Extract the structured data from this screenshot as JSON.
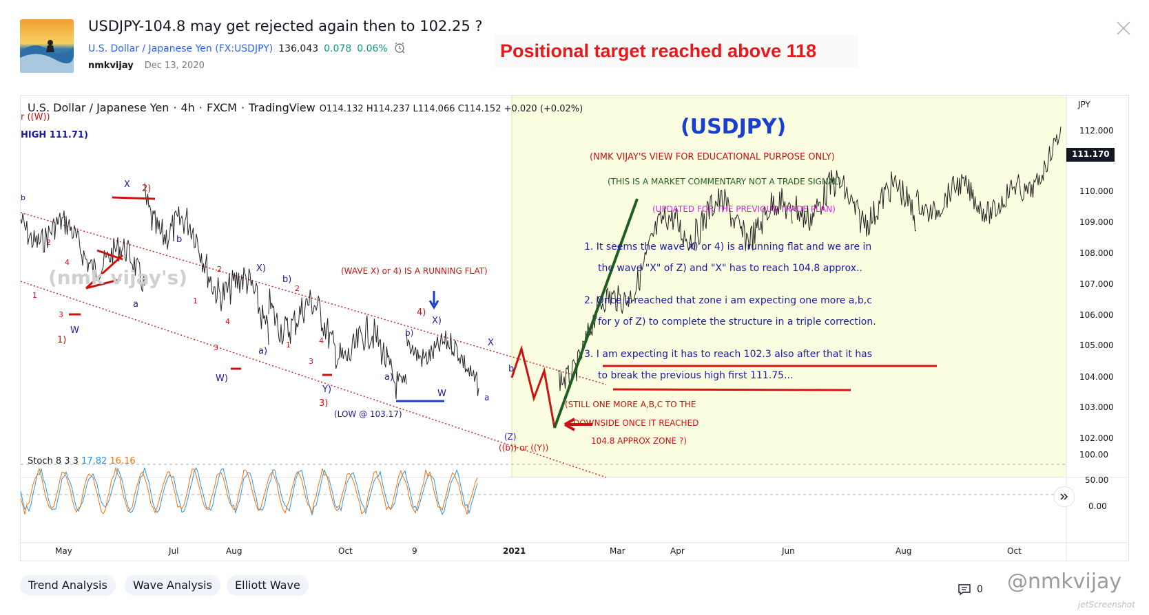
{
  "header": {
    "title": "USDJPY-104.8 may get rejected again then to 102.25 ?",
    "symbol_name": "U.S. Dollar / Japanese Yen",
    "symbol_open": "(",
    "symbol_code": "FX:USDJPY",
    "symbol_close": ")",
    "price": "136.043",
    "change": "0.078",
    "change_pct": "0.06%",
    "author": "nmkvijay",
    "date": "Dec 13, 2020",
    "update_note": "Positional target reached above 118"
  },
  "legend": {
    "symbol": "U.S. Dollar / Japanese Yen",
    "interval": "4h",
    "source": "FXCM",
    "platform": "TradingView",
    "ohlc": "O114.132  H114.237  L114.066  C114.152  +0.020 (+0.02%)"
  },
  "price_axis": {
    "currency": "JPY",
    "current_price": "111.170",
    "ticks": [
      "112.000",
      "110.000",
      "109.000",
      "108.000",
      "107.000",
      "106.000",
      "105.000",
      "104.000",
      "103.000",
      "102.000"
    ]
  },
  "stoch": {
    "label": "Stoch 8 3 3",
    "k": "17.82",
    "d": "16.16",
    "ticks": [
      "100.00",
      "50.00",
      "0.00"
    ]
  },
  "time_axis": {
    "labels": [
      "May",
      "Jul",
      "Aug",
      "Oct",
      "9",
      "2021",
      "Mar",
      "Apr",
      "Jun",
      "Aug",
      "Oct"
    ]
  },
  "annotations": {
    "left_top_1": "r ((W))",
    "left_top_2": "HIGH 111.71)",
    "watermark_chart": "(nmk vijay's)",
    "wave_x_note": "(WAVE X) or 4) IS A RUNNING FLAT)",
    "low_note": "(LOW @ 103.17)",
    "usdjpy_title": "(USDJPY)",
    "view_note": "(NMK VIJAY'S VIEW FOR EDUCATIONAL PURPOSE ONLY)",
    "commentary_note": "(THIS IS A MARKET COMMENTARY NOT A TRADE SIGNAL)",
    "updated_note": "(UPDATED FOR THE PREVIOUS TRADE PLAN)",
    "point1_a": "1. It seems the wave X) or 4) is a running flat and we are in",
    "point1_b": "the wave \"X\" of Z) and \"X\" has to reach 104.8 approx..",
    "point2_a": "2. Once it reached that zone i am expecting one more a,b,c",
    "point2_b": "for y of Z) to complete the structure in a triple correction.",
    "point3_a": "3. I am expecting it has to reach 102.3 also after that it has",
    "point3_b": "to break the previous high first 111.75...",
    "still_1": "(STILL ONE MORE A,B,C TO THE",
    "still_2": "DOWNSIDE ONCE IT REACHED",
    "still_3": "104.8 APPROX ZONE ?)",
    "z_label": "(Z)",
    "b_or_y": "((b)) or ((Y))",
    "wave_labels": {
      "x_top": "X",
      "two_top": "2)",
      "b1": "b",
      "a1": "a",
      "two_a": "2",
      "four_a": "4",
      "one_a": "1",
      "three_a": "3",
      "w_a": "W",
      "one_p": "1)",
      "x2": "X)",
      "b2": "b)",
      "two_b": "2",
      "two_c": "2",
      "one_b": "1",
      "four_b": "4",
      "three_b": "3",
      "w_paren": "W)",
      "a_paren": "a)",
      "one_c": "1",
      "four_c": "4",
      "three_c": "3",
      "y_paren": "Y)",
      "three_p": "3)",
      "four_p": "4)",
      "x3": "X)",
      "b3": "b)",
      "a3": "a)",
      "w_b": "W",
      "x4": "X",
      "b4": "b",
      "a4": "a",
      "b_left": "b"
    }
  },
  "tags": [
    "Trend Analysis",
    "Wave Analysis",
    "Elliott Wave"
  ],
  "footer": {
    "comments": "0",
    "watermark": "@nmkvijay",
    "brand": "jetScreenshot"
  },
  "colors": {
    "accent": "#2962ff",
    "positive": "#089981",
    "annotation_red": "#e51919",
    "wave_blue": "#1a1aa6",
    "highlight_bg": "#fbfde0",
    "stoch_k": "#2196f3",
    "stoch_d": "#ff6d00"
  }
}
